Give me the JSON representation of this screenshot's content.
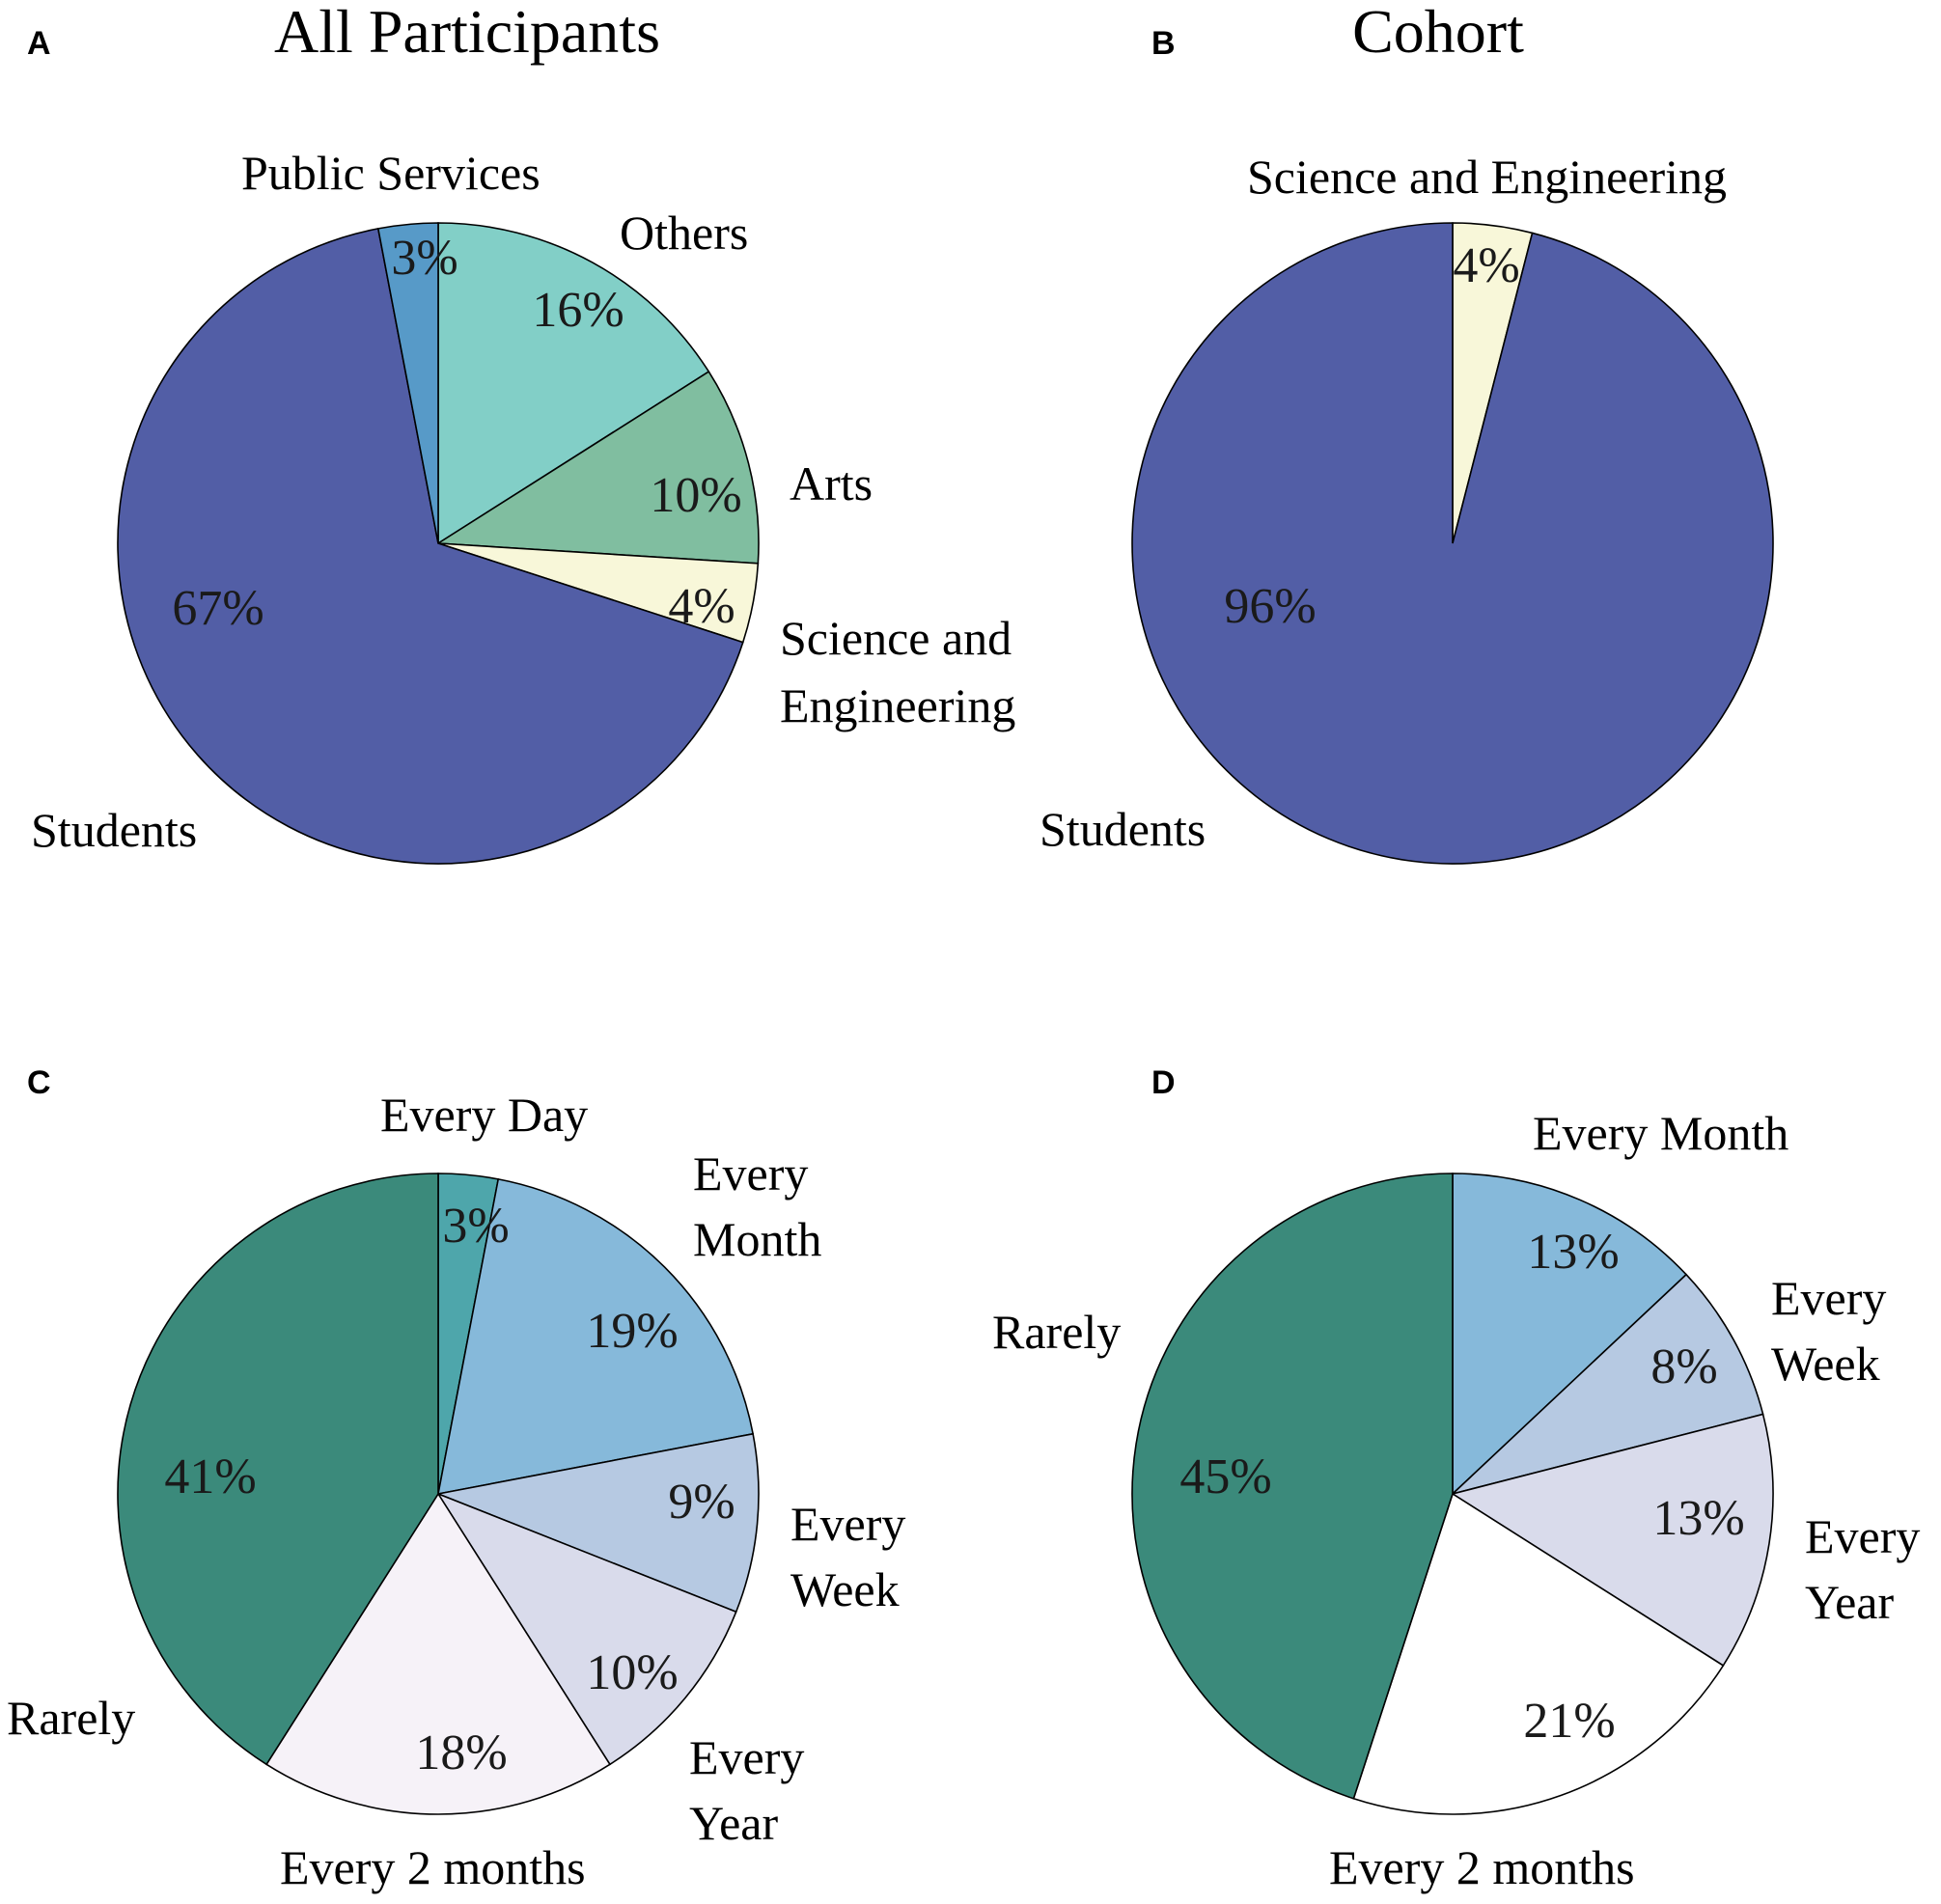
{
  "chart_data": [
    {
      "panel": "A",
      "type": "pie",
      "title": "All Participants",
      "slices": [
        {
          "name": "Others",
          "value": 16,
          "label": "16%",
          "color": "#82cfc7"
        },
        {
          "name": "Arts",
          "value": 10,
          "label": "10%",
          "color": "#80bea0"
        },
        {
          "name": "Science and Engineering",
          "value": 4,
          "label": "4%",
          "color": "#f8f7d9"
        },
        {
          "name": "Students",
          "value": 67,
          "label": "67%",
          "color": "#525ea6"
        },
        {
          "name": "Public Services",
          "value": 3,
          "label": "3%",
          "color": "#579ac8"
        }
      ]
    },
    {
      "panel": "B",
      "type": "pie",
      "title": "Cohort",
      "slices": [
        {
          "name": "Science and Engineering",
          "value": 4,
          "label": "4%",
          "color": "#f8f7d9"
        },
        {
          "name": "Students",
          "value": 96,
          "label": "96%",
          "color": "#525ea6"
        }
      ]
    },
    {
      "panel": "C",
      "type": "pie",
      "title": "",
      "slices": [
        {
          "name": "Every Day",
          "value": 3,
          "label": "3%",
          "color": "#4ea6ab"
        },
        {
          "name": "Every Month",
          "value": 19,
          "label": "19%",
          "color": "#86b9da"
        },
        {
          "name": "Every Week",
          "value": 9,
          "label": "9%",
          "color": "#b6c9e2"
        },
        {
          "name": "Every Year",
          "value": 10,
          "label": "10%",
          "color": "#d9dbeb"
        },
        {
          "name": "Every 2 months",
          "value": 18,
          "label": "18%",
          "color": "#f6f2f8"
        },
        {
          "name": "Rarely",
          "value": 41,
          "label": "41%",
          "color": "#3b8a7b"
        }
      ]
    },
    {
      "panel": "D",
      "type": "pie",
      "title": "",
      "slices": [
        {
          "name": "Every Month",
          "value": 13,
          "label": "13%",
          "color": "#86b9da"
        },
        {
          "name": "Every Week",
          "value": 8,
          "label": "8%",
          "color": "#b6c9e2"
        },
        {
          "name": "Every Year",
          "value": 13,
          "label": "13%",
          "color": "#d9dbeb"
        },
        {
          "name": "Every 2 months",
          "value": 21,
          "label": "21%",
          "color": "#ffffff"
        },
        {
          "name": "Rarely",
          "value": 45,
          "label": "45%",
          "color": "#3b8a7b"
        }
      ]
    }
  ]
}
